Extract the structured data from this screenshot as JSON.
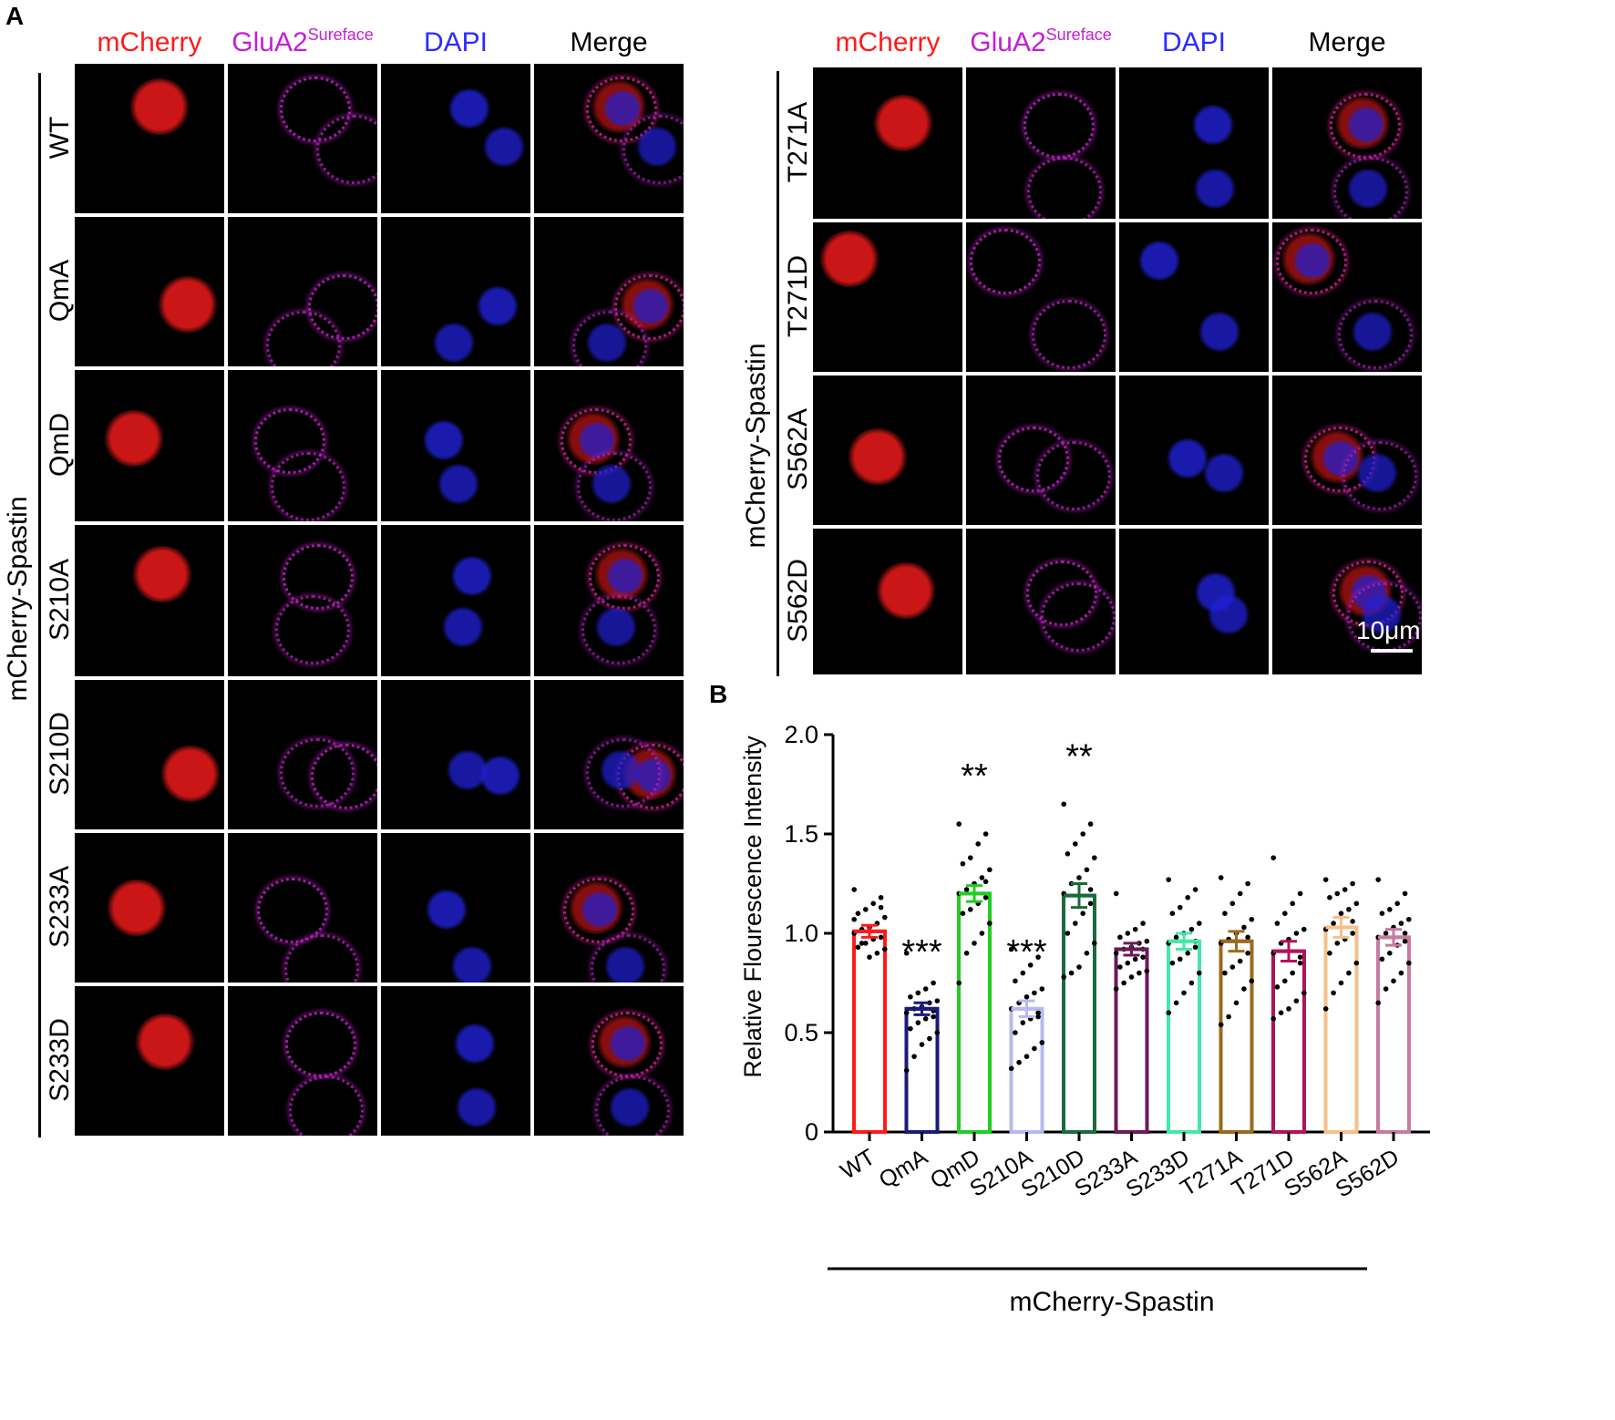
{
  "panelA": {
    "letter": "A",
    "columns": [
      {
        "base": "mCherry",
        "sup": "",
        "color": "#ff1a1a"
      },
      {
        "base": "GluA2",
        "sup": "Sureface",
        "color": "#c41ed6"
      },
      {
        "base": "DAPI",
        "sup": "",
        "color": "#2b2bff"
      },
      {
        "base": "Merge",
        "sup": "",
        "color": "#000000"
      }
    ],
    "left_rows": [
      "WT",
      "QmA",
      "QmD",
      "S210A",
      "S210D",
      "S233A",
      "S233D"
    ],
    "right_rows": [
      "T271A",
      "T271D",
      "S562A",
      "S562D"
    ],
    "left_side_label": "mCherry-Spastin",
    "right_side_label": "mCherry-Spastin",
    "scale_bar_label": "10μm"
  },
  "panelB": {
    "letter": "B",
    "group_label": "mCherry-Spastin"
  },
  "chart_data": {
    "type": "bar",
    "title": "",
    "xlabel": "",
    "ylabel": "Relative Flourescence Intensity",
    "ylim": [
      0,
      2.0
    ],
    "yticks": [
      "0",
      "0.5",
      "1.0",
      "1.5",
      "2.0"
    ],
    "categories": [
      "WT",
      "QmA",
      "QmD",
      "S210A",
      "S210D",
      "S233A",
      "S233D",
      "T271A",
      "T271D",
      "S562A",
      "S562D"
    ],
    "values": [
      1.01,
      0.62,
      1.2,
      0.62,
      1.19,
      0.92,
      0.96,
      0.96,
      0.91,
      1.03,
      0.98
    ],
    "errors": [
      0.03,
      0.03,
      0.04,
      0.04,
      0.06,
      0.03,
      0.04,
      0.05,
      0.05,
      0.05,
      0.04
    ],
    "significance": [
      "",
      "***",
      "**",
      "***",
      "**",
      "",
      "",
      "",
      "",
      "",
      ""
    ],
    "colors": [
      "#ff1a1a",
      "#1a1a7a",
      "#22cc22",
      "#b8b8f0",
      "#1a6b3c",
      "#6b1a5a",
      "#44e8a8",
      "#9c6a1e",
      "#b0145a",
      "#f5c08a",
      "#c77ba0"
    ],
    "points": [
      [
        1.22,
        1.18,
        1.15,
        1.12,
        1.1,
        1.08,
        1.05,
        1.03,
        1.02,
        1.0,
        0.98,
        0.97,
        0.95,
        0.93,
        0.92,
        0.9,
        0.88,
        0.95,
        1.07,
        1.13
      ],
      [
        0.9,
        0.75,
        0.72,
        0.7,
        0.68,
        0.66,
        0.65,
        0.63,
        0.62,
        0.6,
        0.58,
        0.57,
        0.55,
        0.52,
        0.5,
        0.47,
        0.44,
        0.38,
        0.31,
        0.61
      ],
      [
        1.55,
        1.5,
        1.45,
        1.38,
        1.35,
        1.32,
        1.28,
        1.25,
        1.22,
        1.2,
        1.18,
        1.15,
        1.12,
        1.1,
        1.05,
        1.0,
        0.95,
        0.9,
        0.75,
        1.26
      ],
      [
        0.92,
        0.88,
        0.84,
        0.8,
        0.76,
        0.72,
        0.7,
        0.68,
        0.65,
        0.62,
        0.6,
        0.57,
        0.55,
        0.5,
        0.45,
        0.42,
        0.38,
        0.35,
        0.32,
        0.58
      ],
      [
        1.65,
        1.55,
        1.5,
        1.45,
        1.4,
        1.38,
        1.32,
        1.28,
        1.25,
        1.2,
        1.15,
        1.1,
        1.05,
        1.0,
        0.95,
        0.9,
        0.83,
        0.8,
        0.78,
        1.22
      ],
      [
        1.2,
        1.05,
        1.02,
        1.0,
        0.98,
        0.96,
        0.95,
        0.93,
        0.92,
        0.9,
        0.88,
        0.87,
        0.85,
        0.83,
        0.81,
        0.8,
        0.78,
        0.75,
        0.72,
        0.92
      ],
      [
        1.27,
        1.22,
        1.18,
        1.13,
        1.1,
        1.05,
        1.02,
        1.0,
        0.98,
        0.95,
        0.93,
        0.9,
        0.87,
        0.85,
        0.8,
        0.75,
        0.7,
        0.65,
        0.6,
        0.96
      ],
      [
        1.28,
        1.25,
        1.2,
        1.15,
        1.1,
        1.07,
        1.03,
        1.0,
        0.97,
        0.95,
        0.9,
        0.86,
        0.83,
        0.8,
        0.76,
        0.72,
        0.65,
        0.58,
        0.54,
        0.98
      ],
      [
        1.38,
        1.2,
        1.15,
        1.1,
        1.05,
        1.02,
        1.0,
        0.97,
        0.95,
        0.9,
        0.85,
        0.8,
        0.76,
        0.73,
        0.7,
        0.66,
        0.62,
        0.6,
        0.57,
        0.88
      ],
      [
        1.27,
        1.25,
        1.22,
        1.2,
        1.18,
        1.15,
        1.12,
        1.1,
        1.05,
        1.02,
        1.0,
        0.97,
        0.95,
        0.9,
        0.85,
        0.8,
        0.75,
        0.7,
        0.62,
        1.06
      ],
      [
        1.27,
        1.2,
        1.15,
        1.12,
        1.1,
        1.07,
        1.05,
        1.03,
        1.0,
        0.98,
        0.96,
        0.94,
        0.9,
        0.87,
        0.85,
        0.8,
        0.76,
        0.72,
        0.65,
        1.0
      ]
    ]
  }
}
